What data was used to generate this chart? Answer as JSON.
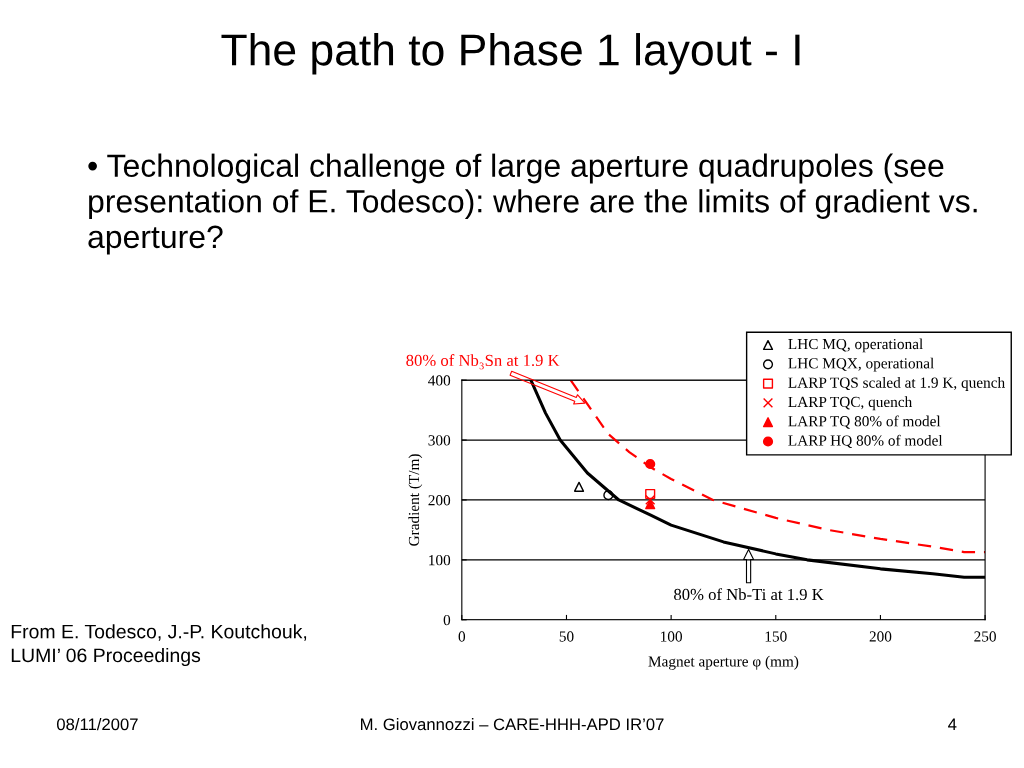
{
  "chart_data": {
    "type": "line",
    "title": "The path to Phase 1 layout - I",
    "subtitle": "• Technological challenge of large aperture quadrupoles (see presentation of E. Todesco): where are the limits of gradient vs. aperture?",
    "xlabel": "Magnet aperture φ (mm)",
    "ylabel": "Gradient (T/m)",
    "xlim": [
      0,
      250
    ],
    "xticks": [
      0,
      50,
      100,
      150,
      200,
      250
    ],
    "ylim": [
      0,
      400
    ],
    "yticks": [
      0,
      100,
      200,
      300,
      400
    ],
    "grid": "y",
    "legend": "top right",
    "series": [
      {
        "color": "#000000",
        "line_style": "solid",
        "marker": "none",
        "x": [
          33,
          40,
          47,
          60,
          75,
          90,
          100,
          125,
          150,
          165,
          200,
          225,
          240,
          250
        ],
        "values": [
          400,
          345,
          300,
          245,
          200,
          175,
          158,
          130,
          110,
          100,
          85,
          77,
          71,
          71
        ]
      },
      {
        "color": "#ff0000",
        "line_style": "dashed",
        "marker": "none",
        "x": [
          52,
          60,
          70,
          80,
          90,
          100,
          120,
          150,
          175,
          200,
          225,
          240,
          250
        ],
        "values": [
          400,
          360,
          310,
          280,
          255,
          235,
          200,
          170,
          150,
          135,
          122,
          113,
          113
        ]
      },
      {
        "type": "scatter",
        "name": "LHC MQ, operational",
        "color": "#000000",
        "marker": "triangle",
        "x": [
          56
        ],
        "values": [
          222
        ]
      },
      {
        "type": "scatter",
        "name": "LHC MQX, operational",
        "color": "#000000",
        "marker": "circle",
        "x": [
          70
        ],
        "values": [
          208
        ]
      },
      {
        "type": "scatter",
        "name": "LARP TQS scaled at 1.9 K, quench",
        "color": "#ff0000",
        "marker": "square",
        "x": [
          90
        ],
        "values": [
          210
        ]
      },
      {
        "type": "scatter",
        "name": "LARP TQC, quench",
        "color": "#ff0000",
        "marker": "cross",
        "x": [
          90
        ],
        "values": [
          200
        ]
      },
      {
        "type": "scatter",
        "name": "LARP TQ 80% of model",
        "color": "#ff0000",
        "marker": "triangle",
        "x": [
          90
        ],
        "values": [
          193
        ]
      },
      {
        "type": "scatter",
        "name": "LARP HQ 80% of model",
        "color": "#ff0000",
        "marker": "circle",
        "x": [
          90
        ],
        "values": [
          260
        ]
      }
    ],
    "annotations": [
      {
        "text": "80% of Nb₃Sn at 1.9 K",
        "x": 60,
        "y": 360
      },
      {
        "text": "80% of Nb-Ti at 1.9 K",
        "x": 137,
        "y": 122
      },
      "From E. Todesco, J.-P. Koutchouk,\nLUMI’ 06 Proceedings",
      "08/11/2007",
      "M. Giovannozzi – CARE-HHH-APD IR’07",
      "4"
    ]
  }
}
